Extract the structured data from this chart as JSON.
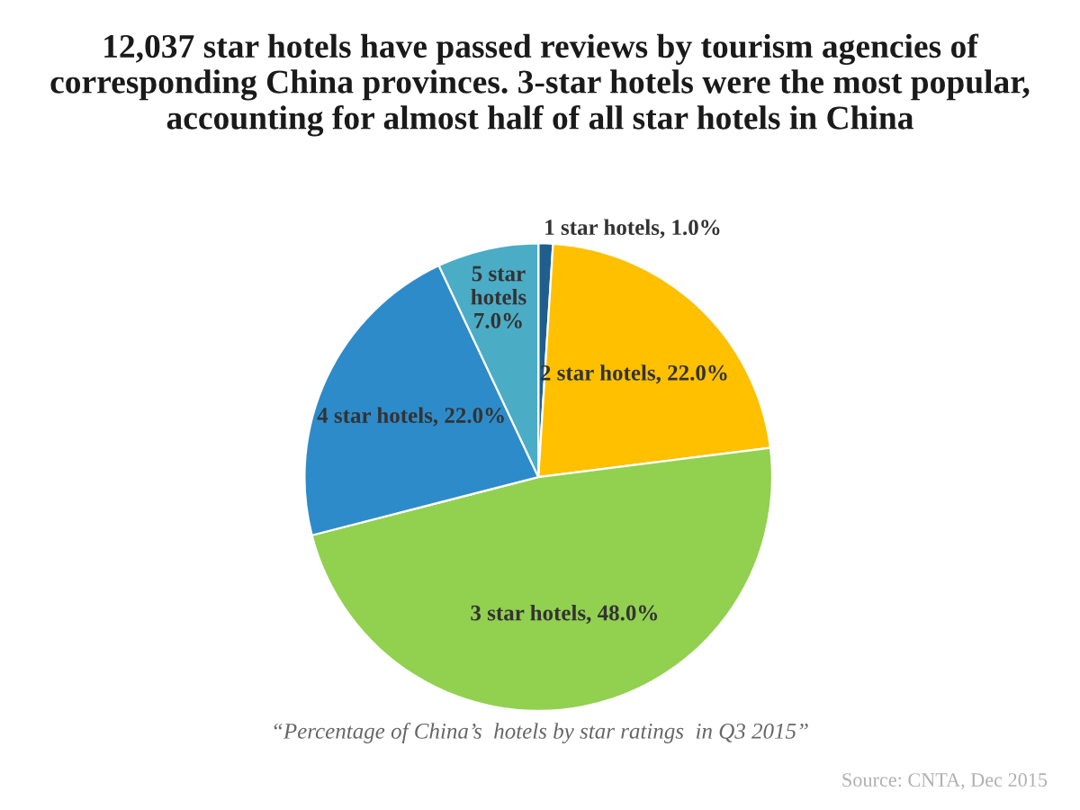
{
  "chart_data": {
    "type": "pie",
    "title": "12,037 star hotels have passed reviews by tourism agencies of corresponding China provinces. 3-star hotels were the most popular, accounting for almost half of all star hotels in China",
    "categories": [
      "1 star hotels",
      "2 star hotels",
      "3 star hotels",
      "4 star hotels",
      "5 star hotels"
    ],
    "values": [
      1.0,
      22.0,
      48.0,
      22.0,
      7.0
    ],
    "colors": [
      "#1f5f8b",
      "#ffc000",
      "#92d050",
      "#2e8bc9",
      "#4bacc6"
    ],
    "value_labels": [
      "1.0%",
      "22.0%",
      "48.0%",
      "22.0%",
      "7.0%"
    ],
    "annotations": [
      "“Percentage of China’s  hotels by star ratings  in Q3 2015”",
      "Source: CNTA, Dec 2015"
    ],
    "legend": false
  }
}
